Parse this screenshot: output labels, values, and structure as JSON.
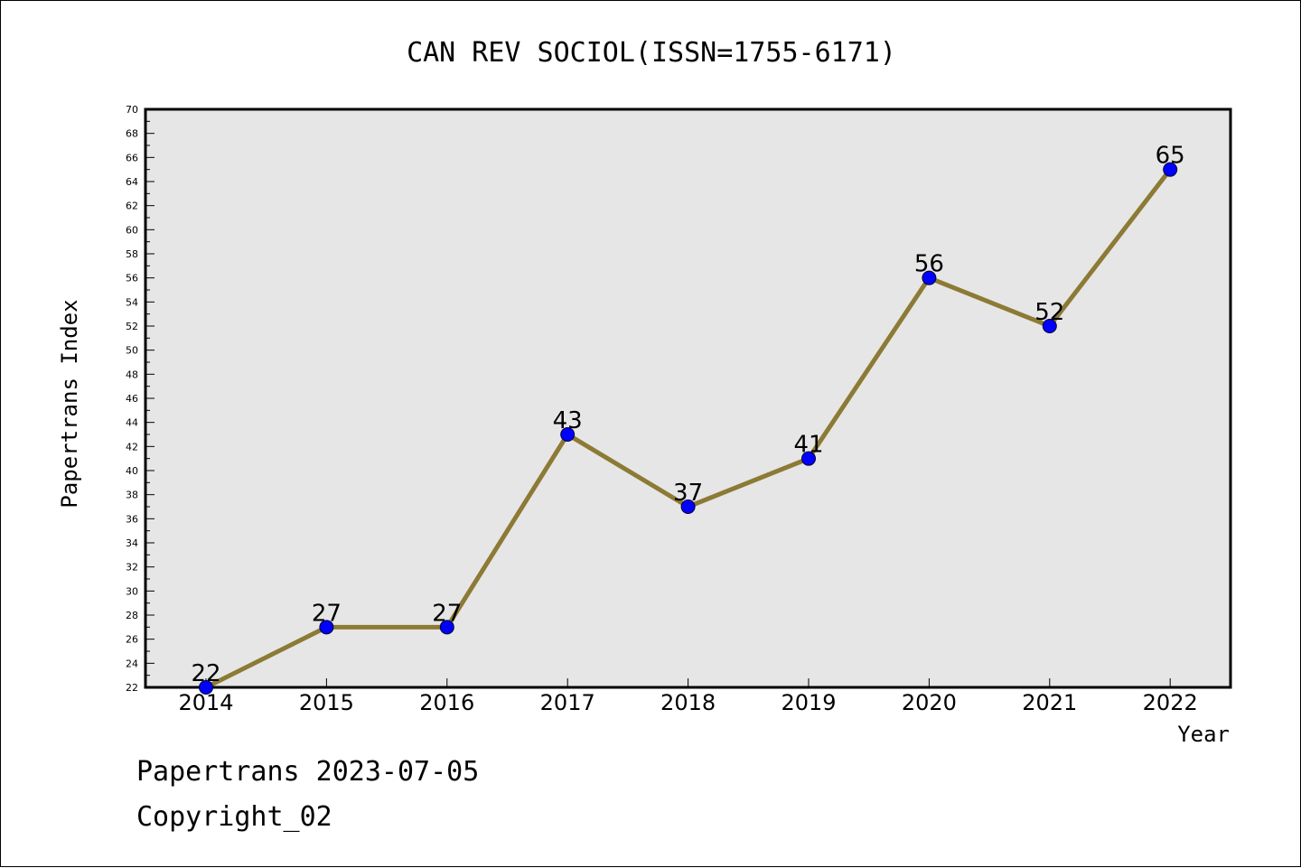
{
  "chart_data": {
    "type": "line",
    "title": "CAN REV SOCIOL(ISSN=1755-6171)",
    "xlabel": "Year",
    "ylabel": "Papertrans Index",
    "categories": [
      "2014",
      "2015",
      "2016",
      "2017",
      "2018",
      "2019",
      "2020",
      "2021",
      "2022"
    ],
    "values": [
      22,
      27,
      27,
      43,
      37,
      41,
      56,
      52,
      65
    ],
    "ylim": [
      22,
      70
    ],
    "ytick_step": 2,
    "grid": false,
    "data_labels": true,
    "colors": {
      "line": "#8c7a35",
      "marker": "#0000ff",
      "plot_background": "#e6e6e6"
    }
  },
  "footer": {
    "date_line": "Papertrans 2023-07-05",
    "copyright": "Copyright_02"
  }
}
